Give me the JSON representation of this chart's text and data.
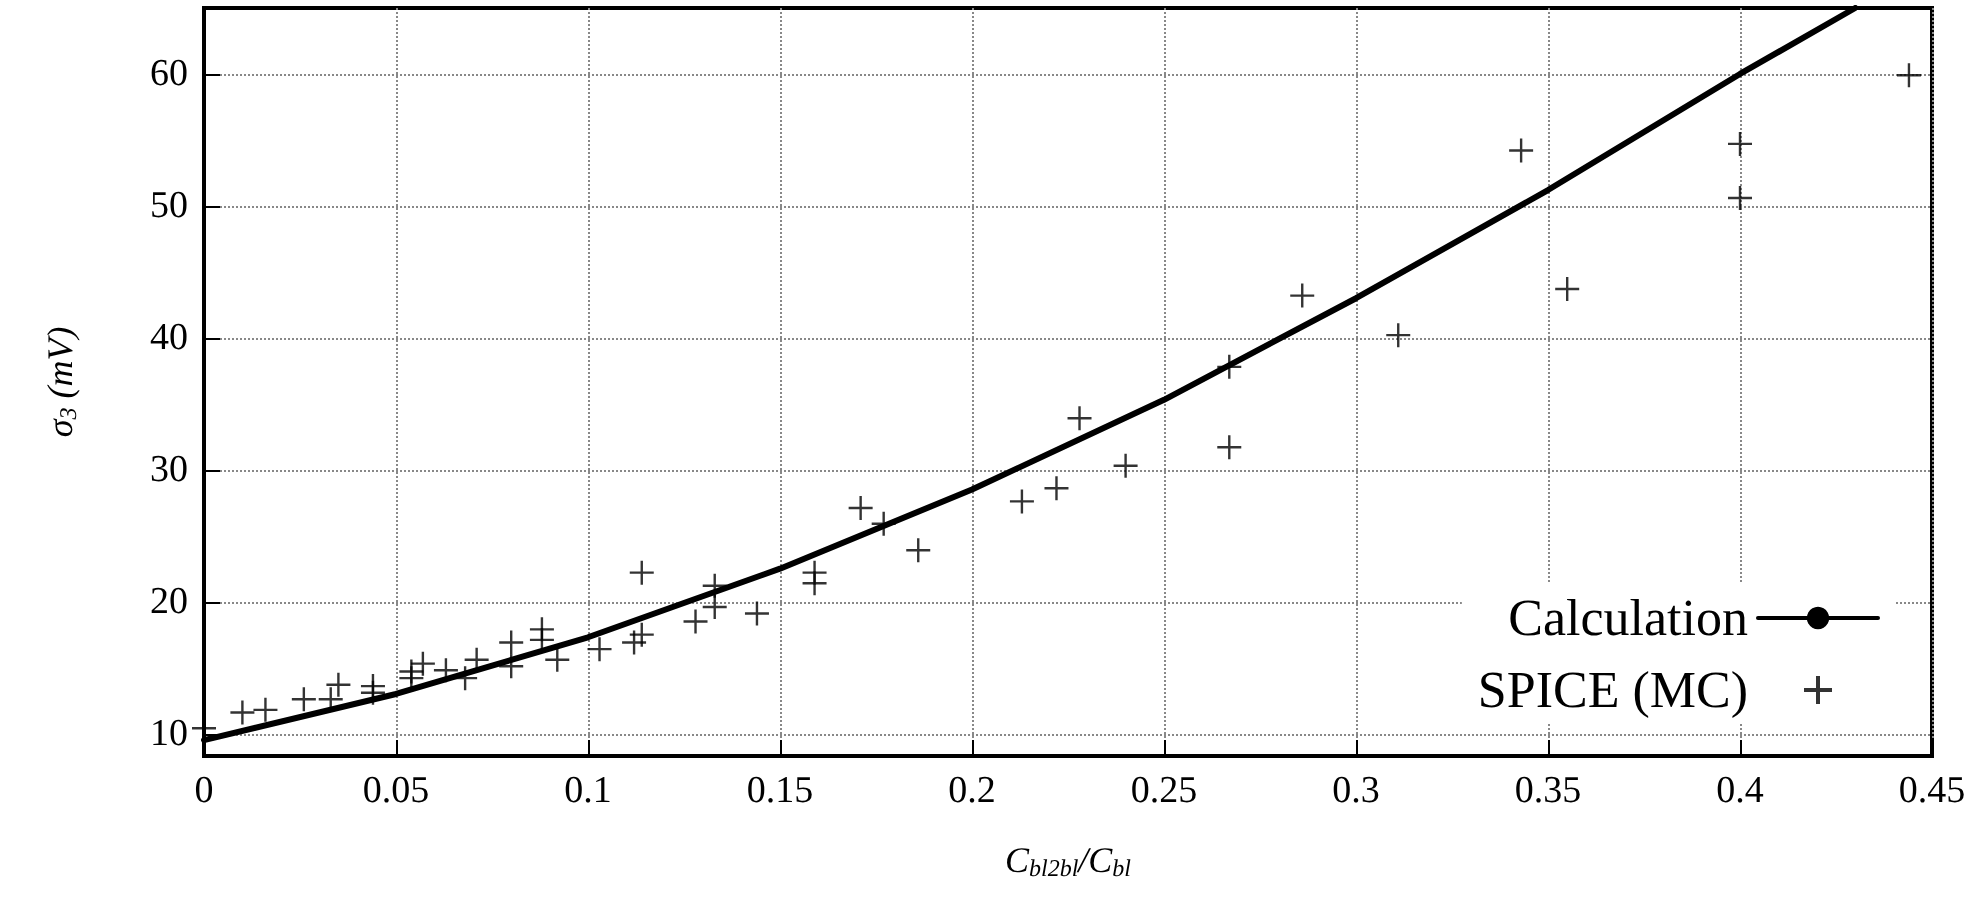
{
  "chart_data": {
    "type": "scatter",
    "xlabel": "C$_{bl2bl}$/C$_{bl}$",
    "ylabel": "σ$_{3}$ (mV)",
    "xlim": [
      0,
      0.45
    ],
    "xticks": [
      0,
      0.05,
      0.1,
      0.15,
      0.2,
      0.25,
      0.3,
      0.35,
      0.4,
      0.45
    ],
    "ylim": [
      8.3,
      65
    ],
    "yticks": [
      10,
      20,
      30,
      40,
      50,
      60
    ],
    "grid": true,
    "legend": "bottom right",
    "series": [
      {
        "name": "Calculation",
        "type": "line",
        "color": "#000000",
        "marker": "none",
        "line_style": "solid",
        "x": [
          0,
          0.05,
          0.1,
          0.15,
          0.2,
          0.25,
          0.3,
          0.35,
          0.4,
          0.43
        ],
        "values": [
          9.5,
          13,
          17.3,
          22.5,
          28.5,
          35.3,
          43,
          51.2,
          60,
          65
        ]
      },
      {
        "name": "SPICE (MC)",
        "type": "scatter",
        "color": "#000000",
        "marker": "cross",
        "x": [
          0,
          0.01,
          0.016,
          0.026,
          0.033,
          0.035,
          0.044,
          0.044,
          0.054,
          0.054,
          0.057,
          0.063,
          0.068,
          0.071,
          0.08,
          0.08,
          0.088,
          0.088,
          0.092,
          0.103,
          0.112,
          0.114,
          0.114,
          0.128,
          0.133,
          0.133,
          0.144,
          0.159,
          0.159,
          0.171,
          0.177,
          0.186,
          0.213,
          0.222,
          0.228,
          0.24,
          0.267,
          0.267,
          0.286,
          0.311,
          0.343,
          0.355,
          0.4,
          0.4,
          0.444
        ],
        "values": [
          10.4,
          11.6,
          11.8,
          12.6,
          12.6,
          13.7,
          13.6,
          13.1,
          14.7,
          14.2,
          15.3,
          14.8,
          14.2,
          15.6,
          16.9,
          15.1,
          17.9,
          17.1,
          15.6,
          16.4,
          16.9,
          17.5,
          22.2,
          18.5,
          21.2,
          19.6,
          19.1,
          22.2,
          21.4,
          27.1,
          25.9,
          23.9,
          27.6,
          28.6,
          33.9,
          30.3,
          37.8,
          31.7,
          43.2,
          40.2,
          54.2,
          43.7,
          54.7,
          50.6,
          59.9
        ]
      }
    ]
  }
}
